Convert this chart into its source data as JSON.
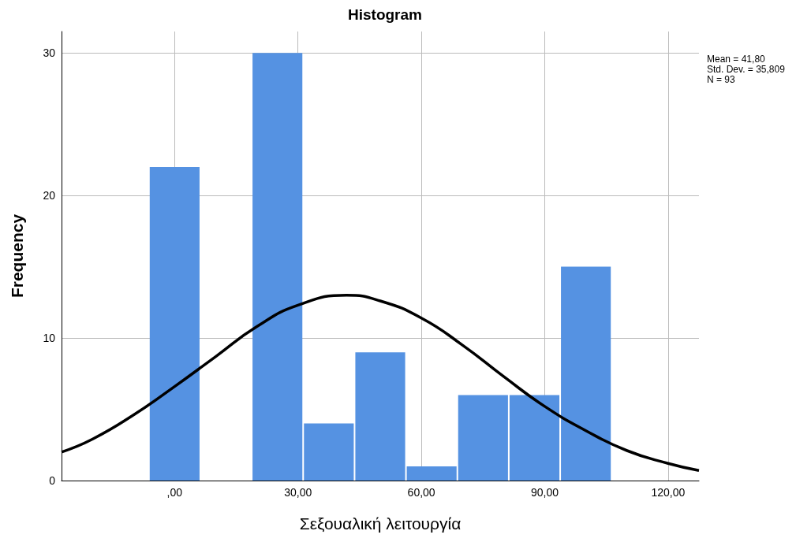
{
  "chart_data": {
    "type": "histogram",
    "title": "Histogram",
    "xlabel": "Σεξουαλική λειτουργία",
    "ylabel": "Frequency",
    "bins": [
      -6.25,
      6.25,
      18.75,
      31.25,
      43.75,
      56.25,
      68.75,
      81.25,
      93.75,
      106.25
    ],
    "values": [
      22,
      0,
      30,
      4,
      9,
      1,
      6,
      6,
      15
    ],
    "color": "#5592e2",
    "series": [
      {
        "type": "line",
        "color": "#000000",
        "x": [
          -27.5,
          -20,
          -10,
          0,
          10,
          20,
          30,
          41.8,
          50,
          60,
          70,
          80,
          90,
          100,
          110,
          120,
          127.5
        ],
        "values": [
          2.0,
          2.9,
          4.6,
          6.6,
          8.7,
          10.8,
          12.3,
          13.0,
          12.6,
          11.4,
          9.5,
          7.3,
          5.2,
          3.5,
          2.1,
          1.2,
          0.7
        ]
      }
    ],
    "xlim": [
      -27.5,
      127.5
    ],
    "xticks": [
      {
        "value": 0,
        "label": ",00"
      },
      {
        "value": 30,
        "label": "30,00"
      },
      {
        "value": 60,
        "label": "60,00"
      },
      {
        "value": 90,
        "label": "90,00"
      },
      {
        "value": 120,
        "label": "120,00"
      }
    ],
    "ylim": [
      0,
      31.5
    ],
    "yticks": [
      0,
      10,
      20,
      30
    ],
    "grid": true,
    "marker": "none",
    "annotations": [
      "Mean = 41,80",
      "Std. Dev. = 35,809",
      "N = 93"
    ]
  }
}
